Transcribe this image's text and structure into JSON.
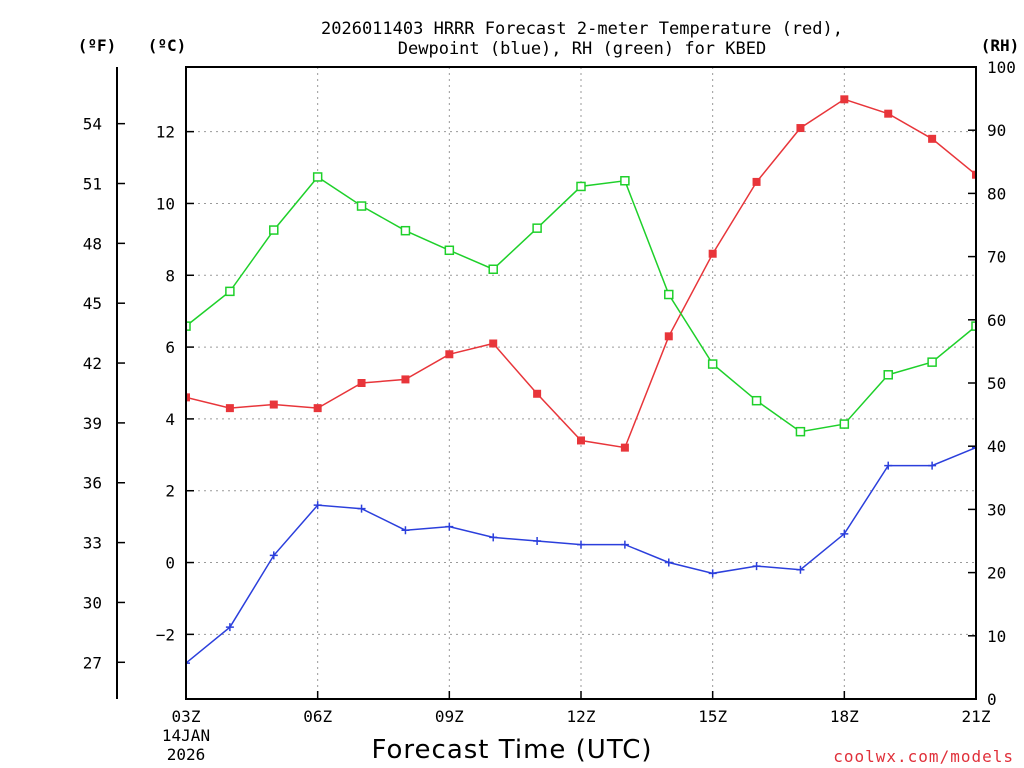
{
  "chart_data": {
    "type": "line",
    "title_lines": [
      "2026011403 HRRR Forecast 2-meter Temperature (red),",
      "Dewpoint (blue), RH (green) for KBED"
    ],
    "xlabel": "Forecast Time (UTC)",
    "x_ticks": [
      "03Z",
      "06Z",
      "09Z",
      "12Z",
      "15Z",
      "18Z",
      "21Z"
    ],
    "x_start_date": [
      "14JAN",
      "2026"
    ],
    "x_hours": [
      3,
      4,
      5,
      6,
      7,
      8,
      9,
      10,
      11,
      12,
      13,
      14,
      15,
      16,
      17,
      18,
      19,
      20,
      21
    ],
    "xlim": [
      3,
      21
    ],
    "left_axis_c": {
      "label": "(ºC)",
      "lim": [
        -3.8,
        13.8
      ],
      "ticks": [
        "-2",
        "0",
        "2",
        "4",
        "6",
        "8",
        "10",
        "12"
      ]
    },
    "left_axis_f": {
      "label": "(ºF)",
      "ticks": [
        "27",
        "30",
        "33",
        "36",
        "39",
        "42",
        "45",
        "48",
        "51",
        "54"
      ]
    },
    "right_axis_rh": {
      "label": "(RH)",
      "lim": [
        0,
        100
      ],
      "ticks": [
        "0",
        "10",
        "20",
        "30",
        "40",
        "50",
        "60",
        "70",
        "80",
        "90",
        "100"
      ]
    },
    "series": [
      {
        "name": "Temperature",
        "color": "#e8353a",
        "marker": "filled-square",
        "axis": "c",
        "values": [
          4.6,
          4.3,
          4.4,
          4.3,
          5.0,
          5.1,
          5.8,
          6.1,
          4.7,
          3.4,
          3.2,
          6.3,
          8.6,
          10.6,
          12.1,
          12.9,
          12.5,
          11.8,
          10.8
        ]
      },
      {
        "name": "Dewpoint",
        "color": "#2b3fdc",
        "marker": "plus",
        "axis": "c",
        "values": [
          -2.8,
          -1.8,
          0.2,
          1.6,
          1.5,
          0.9,
          1.0,
          0.7,
          0.6,
          0.5,
          0.5,
          0.0,
          -0.3,
          -0.1,
          -0.2,
          0.8,
          2.7,
          2.7,
          3.2
        ]
      },
      {
        "name": "RH",
        "color": "#1ed02a",
        "marker": "open-square",
        "axis": "rh",
        "values": [
          59.0,
          64.5,
          74.2,
          82.6,
          78.0,
          74.1,
          71.0,
          68.0,
          74.5,
          81.1,
          82.0,
          64.0,
          53.0,
          47.2,
          42.3,
          43.5,
          51.3,
          53.3,
          59.0
        ]
      }
    ]
  },
  "credit": "coolwx.com/models"
}
